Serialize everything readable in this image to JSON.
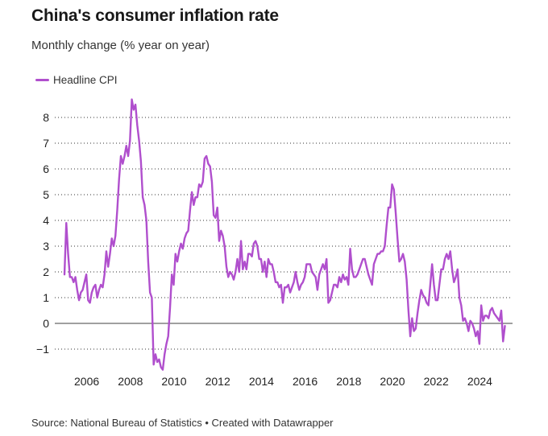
{
  "header": {
    "title": "China's consumer inflation rate",
    "subtitle": "Monthly change (% year on year)"
  },
  "legend": [
    {
      "label": "Headline CPI",
      "color": "#b04fcd"
    }
  ],
  "footer": {
    "source": "Source: National Bureau of Statistics • Created with Datawrapper"
  },
  "chart_data": {
    "type": "line",
    "title": "China's consumer inflation rate",
    "subtitle": "Monthly change (% year on year)",
    "xlabel": "",
    "ylabel": "",
    "x_start": "2005-01",
    "x_frequency": "monthly",
    "x_end": "2025-03",
    "xlim": [
      2005.0,
      2025.3
    ],
    "ylim": [
      -1.9,
      8.8
    ],
    "y_ticks": [
      -1,
      0,
      1,
      2,
      3,
      4,
      5,
      6,
      7,
      8
    ],
    "y_tick_labels": [
      "−1",
      "0",
      "1",
      "2",
      "3",
      "4",
      "5",
      "6",
      "7",
      "8"
    ],
    "x_ticks": [
      2006,
      2008,
      2010,
      2012,
      2014,
      2016,
      2018,
      2020,
      2022,
      2024
    ],
    "x_tick_labels": [
      "2006",
      "2008",
      "2010",
      "2012",
      "2014",
      "2016",
      "2018",
      "2020",
      "2022",
      "2024"
    ],
    "grid": "horizontal-dotted",
    "zero_line": true,
    "legend_position": "top-left",
    "series": [
      {
        "name": "Headline CPI",
        "color": "#b04fcd",
        "values": [
          1.9,
          3.9,
          2.7,
          1.8,
          1.8,
          1.6,
          1.8,
          1.3,
          0.9,
          1.2,
          1.3,
          1.6,
          1.9,
          0.9,
          0.8,
          1.2,
          1.4,
          1.5,
          1.0,
          1.3,
          1.5,
          1.4,
          1.9,
          2.8,
          2.2,
          2.7,
          3.3,
          3.0,
          3.4,
          4.4,
          5.6,
          6.5,
          6.2,
          6.5,
          6.9,
          6.5,
          7.1,
          8.7,
          8.3,
          8.5,
          7.7,
          7.1,
          6.3,
          4.9,
          4.6,
          4.0,
          2.4,
          1.2,
          1.0,
          -1.6,
          -1.2,
          -1.5,
          -1.4,
          -1.7,
          -1.8,
          -1.2,
          -0.8,
          -0.5,
          0.6,
          1.9,
          1.5,
          2.7,
          2.4,
          2.8,
          3.1,
          2.9,
          3.3,
          3.5,
          3.6,
          4.4,
          5.1,
          4.6,
          4.9,
          4.9,
          5.4,
          5.3,
          5.5,
          6.4,
          6.5,
          6.2,
          6.1,
          5.5,
          4.2,
          4.1,
          4.5,
          3.2,
          3.6,
          3.4,
          3.0,
          2.2,
          1.8,
          2.0,
          1.9,
          1.7,
          2.0,
          2.5,
          2.0,
          3.2,
          2.1,
          2.4,
          2.1,
          2.7,
          2.7,
          2.6,
          3.1,
          3.2,
          3.0,
          2.5,
          2.5,
          2.0,
          2.4,
          1.8,
          2.5,
          2.3,
          2.3,
          2.0,
          1.6,
          1.6,
          1.4,
          1.5,
          0.8,
          1.4,
          1.4,
          1.5,
          1.2,
          1.4,
          1.6,
          2.0,
          1.6,
          1.3,
          1.5,
          1.6,
          1.8,
          2.3,
          2.3,
          2.3,
          2.0,
          1.9,
          1.8,
          1.3,
          1.9,
          2.1,
          2.3,
          2.1,
          2.5,
          0.8,
          0.9,
          1.2,
          1.5,
          1.5,
          1.4,
          1.8,
          1.6,
          1.9,
          1.7,
          1.8,
          1.5,
          2.9,
          2.1,
          1.8,
          1.8,
          1.9,
          2.1,
          2.3,
          2.5,
          2.5,
          2.2,
          1.9,
          1.7,
          1.5,
          2.3,
          2.5,
          2.7,
          2.7,
          2.8,
          2.8,
          3.0,
          3.8,
          4.5,
          4.5,
          5.4,
          5.2,
          4.3,
          3.3,
          2.4,
          2.5,
          2.7,
          2.4,
          1.7,
          0.5,
          -0.5,
          0.2,
          -0.3,
          -0.2,
          0.4,
          0.9,
          1.3,
          1.1,
          1.0,
          0.8,
          0.7,
          1.5,
          2.3,
          1.5,
          0.9,
          0.9,
          1.5,
          2.1,
          2.1,
          2.5,
          2.7,
          2.5,
          2.8,
          2.1,
          1.6,
          1.8,
          2.1,
          1.0,
          0.7,
          0.1,
          0.2,
          0.0,
          -0.3,
          0.1,
          0.0,
          -0.2,
          -0.5,
          -0.3,
          -0.8,
          0.7,
          0.1,
          0.3,
          0.3,
          0.2,
          0.5,
          0.6,
          0.4,
          0.3,
          0.2,
          0.1,
          0.5,
          -0.7,
          -0.1
        ]
      }
    ]
  }
}
